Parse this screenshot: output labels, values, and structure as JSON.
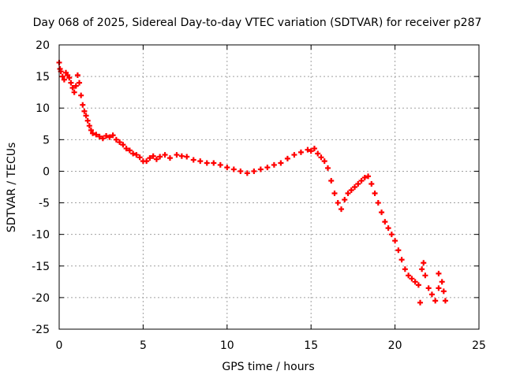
{
  "chart_data": {
    "type": "scatter",
    "title": "Day 068 of 2025, Sidereal Day-to-day VTEC variation (SDTVAR) for receiver p287",
    "xlabel": "GPS time / hours",
    "ylabel": "SDTVAR / TECUs",
    "xlim": [
      0,
      25
    ],
    "ylim": [
      -25,
      20
    ],
    "xticks": [
      0,
      5,
      10,
      15,
      20,
      25
    ],
    "yticks": [
      -25,
      -20,
      -15,
      -10,
      -5,
      0,
      5,
      10,
      15,
      20
    ],
    "grid": true,
    "marker": "+",
    "color": "#ff0000",
    "series": [
      {
        "name": "SDTVAR",
        "points": [
          [
            0.0,
            17.2
          ],
          [
            0.05,
            16.2
          ],
          [
            0.1,
            15.8
          ],
          [
            0.2,
            15.0
          ],
          [
            0.3,
            14.5
          ],
          [
            0.4,
            15.6
          ],
          [
            0.5,
            15.2
          ],
          [
            0.6,
            14.8
          ],
          [
            0.7,
            14.0
          ],
          [
            0.8,
            13.2
          ],
          [
            0.9,
            12.5
          ],
          [
            1.0,
            13.5
          ],
          [
            1.1,
            15.2
          ],
          [
            1.2,
            14.0
          ],
          [
            1.3,
            12.0
          ],
          [
            1.4,
            10.5
          ],
          [
            1.5,
            9.5
          ],
          [
            1.6,
            8.8
          ],
          [
            1.7,
            8.0
          ],
          [
            1.8,
            7.2
          ],
          [
            1.9,
            6.5
          ],
          [
            2.0,
            6.0
          ],
          [
            2.2,
            5.8
          ],
          [
            2.4,
            5.5
          ],
          [
            2.6,
            5.2
          ],
          [
            2.8,
            5.6
          ],
          [
            3.0,
            5.4
          ],
          [
            3.2,
            5.7
          ],
          [
            3.4,
            5.0
          ],
          [
            3.6,
            4.6
          ],
          [
            3.8,
            4.2
          ],
          [
            4.0,
            3.6
          ],
          [
            4.2,
            3.3
          ],
          [
            4.4,
            2.8
          ],
          [
            4.6,
            2.6
          ],
          [
            4.8,
            2.2
          ],
          [
            5.0,
            1.6
          ],
          [
            5.2,
            1.6
          ],
          [
            5.4,
            2.1
          ],
          [
            5.6,
            2.4
          ],
          [
            5.8,
            1.9
          ],
          [
            6.0,
            2.3
          ],
          [
            6.3,
            2.6
          ],
          [
            6.6,
            2.1
          ],
          [
            7.0,
            2.6
          ],
          [
            7.3,
            2.4
          ],
          [
            7.6,
            2.3
          ],
          [
            8.0,
            1.8
          ],
          [
            8.4,
            1.6
          ],
          [
            8.8,
            1.3
          ],
          [
            9.2,
            1.3
          ],
          [
            9.6,
            1.0
          ],
          [
            10.0,
            0.6
          ],
          [
            10.4,
            0.3
          ],
          [
            10.8,
            0.0
          ],
          [
            11.2,
            -0.3
          ],
          [
            11.6,
            0.0
          ],
          [
            12.0,
            0.3
          ],
          [
            12.4,
            0.6
          ],
          [
            12.8,
            1.0
          ],
          [
            13.2,
            1.3
          ],
          [
            13.6,
            2.0
          ],
          [
            14.0,
            2.6
          ],
          [
            14.4,
            3.0
          ],
          [
            14.8,
            3.4
          ],
          [
            15.0,
            3.2
          ],
          [
            15.2,
            3.6
          ],
          [
            15.4,
            2.8
          ],
          [
            15.6,
            2.2
          ],
          [
            15.8,
            1.6
          ],
          [
            16.0,
            0.5
          ],
          [
            16.2,
            -1.5
          ],
          [
            16.4,
            -3.5
          ],
          [
            16.6,
            -5.0
          ],
          [
            16.8,
            -6.0
          ],
          [
            17.0,
            -4.5
          ],
          [
            17.2,
            -3.5
          ],
          [
            17.4,
            -3.0
          ],
          [
            17.6,
            -2.5
          ],
          [
            17.8,
            -2.0
          ],
          [
            18.0,
            -1.5
          ],
          [
            18.2,
            -1.0
          ],
          [
            18.4,
            -0.8
          ],
          [
            18.6,
            -2.0
          ],
          [
            18.8,
            -3.5
          ],
          [
            19.0,
            -5.0
          ],
          [
            19.2,
            -6.5
          ],
          [
            19.4,
            -8.0
          ],
          [
            19.6,
            -9.0
          ],
          [
            19.8,
            -10.0
          ],
          [
            20.0,
            -11.0
          ],
          [
            20.2,
            -12.5
          ],
          [
            20.4,
            -14.0
          ],
          [
            20.6,
            -15.5
          ],
          [
            20.8,
            -16.5
          ],
          [
            21.0,
            -17.0
          ],
          [
            21.2,
            -17.5
          ],
          [
            21.4,
            -18.0
          ],
          [
            21.6,
            -15.5
          ],
          [
            21.8,
            -16.5
          ],
          [
            22.0,
            -18.5
          ],
          [
            22.2,
            -19.5
          ],
          [
            22.4,
            -20.5
          ],
          [
            22.6,
            -18.5
          ],
          [
            22.8,
            -17.5
          ],
          [
            22.9,
            -19.0
          ],
          [
            23.0,
            -20.5
          ],
          [
            21.5,
            -20.8
          ],
          [
            22.6,
            -16.2
          ],
          [
            21.7,
            -14.5
          ]
        ]
      }
    ]
  }
}
